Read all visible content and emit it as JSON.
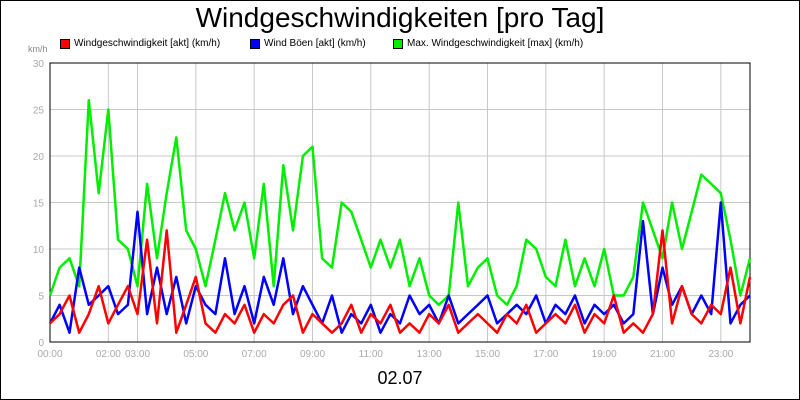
{
  "chart_data": {
    "type": "line",
    "title": "Windgeschwindigkeiten [pro Tag]",
    "y_unit": "km/h",
    "date_label": "02.07",
    "ylim": [
      0,
      30
    ],
    "y_ticks": [
      "0",
      "5",
      "10",
      "15",
      "20",
      "25",
      "30"
    ],
    "xlim": [
      0,
      24
    ],
    "x_ticks": [
      "00:00",
      "02:00",
      "03:00",
      "05:00",
      "07:00",
      "09:00",
      "11:00",
      "13:00",
      "15:00",
      "17:00",
      "19:00",
      "21:00",
      "23:00"
    ],
    "x_tick_positions": [
      0,
      2,
      3,
      5,
      7,
      9,
      11,
      13,
      15,
      17,
      19,
      21,
      23
    ],
    "grid": true,
    "legend_position": "top-left",
    "series": [
      {
        "name": "Windgeschwindigkeit [akt] (km/h)",
        "color": "#ff0000",
        "x": [
          0,
          0.33,
          0.67,
          1,
          1.33,
          1.67,
          2,
          2.33,
          2.67,
          3,
          3.33,
          3.67,
          4,
          4.33,
          4.67,
          5,
          5.33,
          5.67,
          6,
          6.33,
          6.67,
          7,
          7.33,
          7.67,
          8,
          8.33,
          8.67,
          9,
          9.33,
          9.67,
          10,
          10.33,
          10.67,
          11,
          11.33,
          11.67,
          12,
          12.33,
          12.67,
          13,
          13.33,
          13.67,
          14,
          14.33,
          14.67,
          15,
          15.33,
          15.67,
          16,
          16.33,
          16.67,
          17,
          17.33,
          17.67,
          18,
          18.33,
          18.67,
          19,
          19.33,
          19.67,
          20,
          20.33,
          20.67,
          21,
          21.33,
          21.67,
          22,
          22.33,
          22.67,
          23,
          23.33,
          23.67,
          24
        ],
        "values": [
          2,
          3,
          5,
          1,
          3,
          6,
          2,
          4,
          6,
          3,
          11,
          2,
          12,
          1,
          4,
          7,
          2,
          1,
          3,
          2,
          4,
          1,
          3,
          2,
          4,
          5,
          1,
          3,
          2,
          1,
          2,
          4,
          1,
          3,
          2,
          4,
          1,
          2,
          1,
          3,
          2,
          4,
          1,
          2,
          3,
          2,
          1,
          3,
          2,
          4,
          1,
          2,
          3,
          2,
          4,
          1,
          3,
          2,
          5,
          1,
          2,
          1,
          3,
          12,
          2,
          6,
          3,
          2,
          4,
          3,
          8,
          2,
          7
        ]
      },
      {
        "name": "Wind Böen [akt] (km/h)",
        "color": "#0000ff",
        "x": [
          0,
          0.33,
          0.67,
          1,
          1.33,
          1.67,
          2,
          2.33,
          2.67,
          3,
          3.33,
          3.67,
          4,
          4.33,
          4.67,
          5,
          5.33,
          5.67,
          6,
          6.33,
          6.67,
          7,
          7.33,
          7.67,
          8,
          8.33,
          8.67,
          9,
          9.33,
          9.67,
          10,
          10.33,
          10.67,
          11,
          11.33,
          11.67,
          12,
          12.33,
          12.67,
          13,
          13.33,
          13.67,
          14,
          14.33,
          14.67,
          15,
          15.33,
          15.67,
          16,
          16.33,
          16.67,
          17,
          17.33,
          17.67,
          18,
          18.33,
          18.67,
          19,
          19.33,
          19.67,
          20,
          20.33,
          20.67,
          21,
          21.33,
          21.67,
          22,
          22.33,
          22.67,
          23,
          23.33,
          23.67,
          24
        ],
        "values": [
          2,
          4,
          1,
          8,
          4,
          5,
          6,
          3,
          4,
          14,
          3,
          8,
          3,
          7,
          2,
          6,
          4,
          3,
          9,
          3,
          6,
          2,
          7,
          4,
          9,
          3,
          6,
          4,
          2,
          5,
          1,
          3,
          2,
          4,
          1,
          3,
          2,
          5,
          3,
          4,
          2,
          5,
          2,
          3,
          4,
          5,
          2,
          3,
          4,
          3,
          5,
          2,
          4,
          3,
          5,
          2,
          4,
          3,
          4,
          2,
          3,
          13,
          3,
          8,
          4,
          6,
          3,
          5,
          3,
          15,
          2,
          4,
          5
        ]
      },
      {
        "name": "Max. Windgeschwindigkeit [max] (km/h)",
        "color": "#00ee00",
        "x": [
          0,
          0.33,
          0.67,
          1,
          1.33,
          1.67,
          2,
          2.33,
          2.67,
          3,
          3.33,
          3.67,
          4,
          4.33,
          4.67,
          5,
          5.33,
          5.67,
          6,
          6.33,
          6.67,
          7,
          7.33,
          7.67,
          8,
          8.33,
          8.67,
          9,
          9.33,
          9.67,
          10,
          10.33,
          10.67,
          11,
          11.33,
          11.67,
          12,
          12.33,
          12.67,
          13,
          13.33,
          13.67,
          14,
          14.33,
          14.67,
          15,
          15.33,
          15.67,
          16,
          16.33,
          16.67,
          17,
          17.33,
          17.67,
          18,
          18.33,
          18.67,
          19,
          19.33,
          19.67,
          20,
          20.33,
          20.67,
          21,
          21.33,
          21.67,
          22,
          22.33,
          22.67,
          23,
          23.33,
          23.67,
          24
        ],
        "values": [
          5,
          8,
          9,
          6,
          26,
          16,
          25,
          11,
          10,
          6,
          17,
          9,
          16,
          22,
          12,
          10,
          6,
          11,
          16,
          12,
          15,
          9,
          17,
          6,
          19,
          12,
          20,
          21,
          9,
          8,
          15,
          14,
          11,
          8,
          11,
          8,
          11,
          6,
          9,
          5,
          4,
          5,
          15,
          6,
          8,
          9,
          5,
          4,
          6,
          11,
          10,
          7,
          6,
          11,
          6,
          9,
          6,
          10,
          5,
          5,
          7,
          15,
          12,
          9,
          15,
          10,
          14,
          18,
          17,
          16,
          11,
          5,
          9
        ]
      }
    ]
  }
}
